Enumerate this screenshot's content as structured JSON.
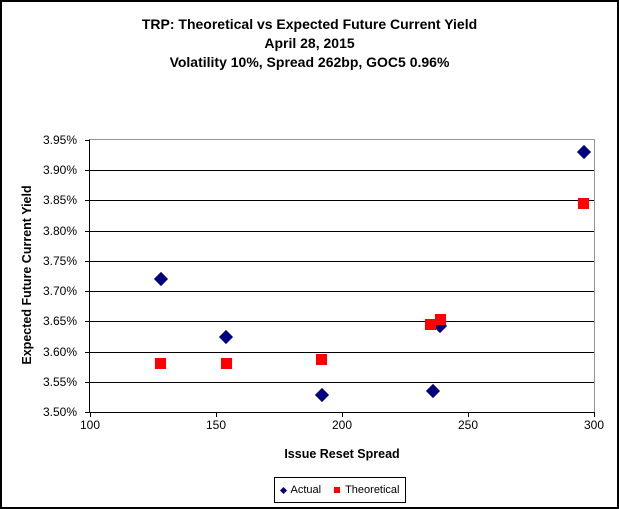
{
  "chart_data": {
    "type": "scatter",
    "title": "TRP: Theoretical vs Expected Future Current Yield",
    "subtitle1": "April 28, 2015",
    "subtitle2": "Volatility 10%, Spread 262bp, GOC5 0.96%",
    "xlabel": "Issue Reset Spread",
    "ylabel": "Expected Future Current Yield",
    "xlim": [
      100,
      300
    ],
    "ylim": [
      3.5,
      3.95
    ],
    "x_ticks": [
      100,
      150,
      200,
      250,
      300
    ],
    "y_ticks": [
      3.95,
      3.9,
      3.85,
      3.8,
      3.75,
      3.7,
      3.65,
      3.6,
      3.55,
      3.5
    ],
    "y_tick_suffix": "%",
    "grid": "horizontal-black",
    "legend_position": "bottom",
    "colors": {
      "actual": "#000080",
      "theoretical": "#FF0000",
      "gridline": "#000000",
      "plot_border": "#959595"
    },
    "series": [
      {
        "name": "Actual",
        "marker": "diamond",
        "color": "#000080",
        "points": [
          [
            128,
            3.72
          ],
          [
            154,
            3.624
          ],
          [
            192,
            3.528
          ],
          [
            236,
            3.535
          ],
          [
            239,
            3.642
          ],
          [
            296,
            3.93
          ]
        ]
      },
      {
        "name": "Theoretical",
        "marker": "square",
        "color": "#FF0000",
        "points": [
          [
            128,
            3.58
          ],
          [
            154,
            3.58
          ],
          [
            192,
            3.587
          ],
          [
            235,
            3.645
          ],
          [
            239,
            3.653
          ],
          [
            296,
            3.845
          ]
        ]
      }
    ]
  }
}
